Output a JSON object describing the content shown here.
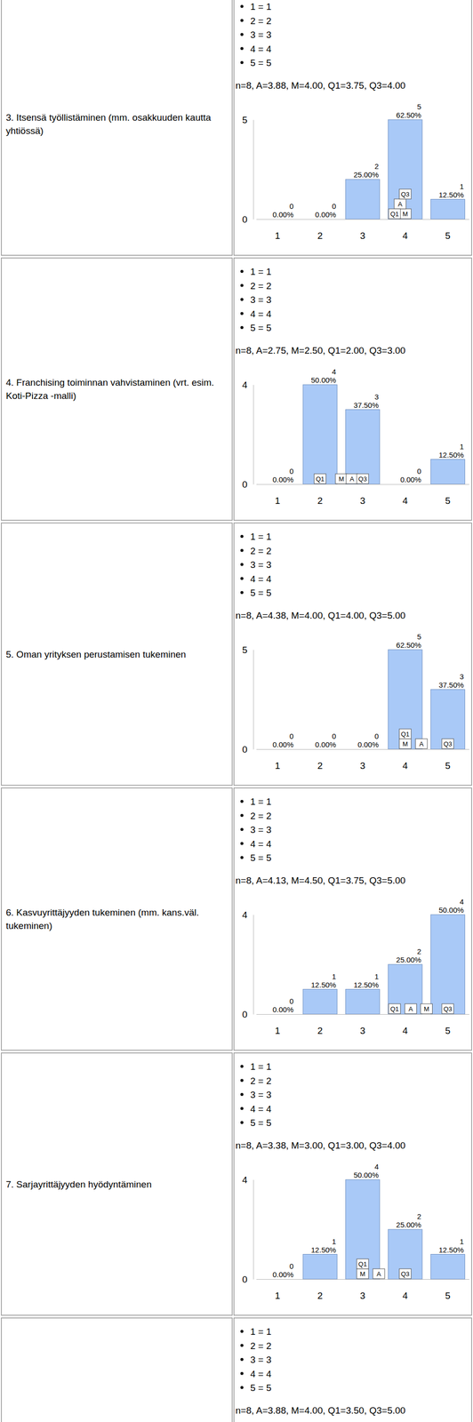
{
  "chart_data": [
    {
      "type": "bar",
      "title": "3. Itsensä työllistäminen (mm. osakkuuden kautta yhtiössä)",
      "scale_labels": [
        "1 = 1",
        "2 = 2",
        "3 = 3",
        "4 = 4",
        "5 = 5"
      ],
      "subtitle": "n=8, A=3.88, M=4.00, Q1=3.75, Q3=4.00",
      "categories": [
        "1",
        "2",
        "3",
        "4",
        "5"
      ],
      "values": [
        0,
        0,
        2,
        5,
        1
      ],
      "percent_labels": [
        "0.00%",
        "0.00%",
        "25.00%",
        "62.50%",
        "12.50%"
      ],
      "markers": [
        {
          "label": "M",
          "value": 4.0
        },
        {
          "label": "A",
          "value": 3.88
        },
        {
          "label": "Q1",
          "value": 3.75
        },
        {
          "label": "Q3",
          "value": 4.0
        }
      ],
      "color": "#a9c9f7",
      "ylim": [
        0,
        5
      ],
      "yticks": [
        0,
        5
      ],
      "data_labels": true
    },
    {
      "type": "bar",
      "title": "4. Franchising toiminnan vahvistaminen (vrt. esim. Koti-Pizza -malli)",
      "scale_labels": [
        "1 = 1",
        "2 = 2",
        "3 = 3",
        "4 = 4",
        "5 = 5"
      ],
      "subtitle": "n=8, A=2.75, M=2.50, Q1=2.00, Q3=3.00",
      "categories": [
        "1",
        "2",
        "3",
        "4",
        "5"
      ],
      "values": [
        0,
        4,
        3,
        0,
        1
      ],
      "percent_labels": [
        "0.00%",
        "50.00%",
        "37.50%",
        "0.00%",
        "12.50%"
      ],
      "markers": [
        {
          "label": "M",
          "value": 2.5
        },
        {
          "label": "A",
          "value": 2.75
        },
        {
          "label": "Q1",
          "value": 2.0
        },
        {
          "label": "Q3",
          "value": 3.0
        }
      ],
      "color": "#a9c9f7",
      "ylim": [
        0,
        4
      ],
      "yticks": [
        0,
        4
      ],
      "data_labels": true
    },
    {
      "type": "bar",
      "title": "5. Oman yrityksen perustamisen tukeminen",
      "scale_labels": [
        "1 = 1",
        "2 = 2",
        "3 = 3",
        "4 = 4",
        "5 = 5"
      ],
      "subtitle": "n=8, A=4.38, M=4.00, Q1=4.00, Q3=5.00",
      "categories": [
        "1",
        "2",
        "3",
        "4",
        "5"
      ],
      "values": [
        0,
        0,
        0,
        5,
        3
      ],
      "percent_labels": [
        "0.00%",
        "0.00%",
        "0.00%",
        "62.50%",
        "37.50%"
      ],
      "markers": [
        {
          "label": "M",
          "value": 4.0
        },
        {
          "label": "A",
          "value": 4.38
        },
        {
          "label": "Q1",
          "value": 4.0
        },
        {
          "label": "Q3",
          "value": 5.0
        }
      ],
      "color": "#a9c9f7",
      "ylim": [
        0,
        5
      ],
      "yticks": [
        0,
        5
      ],
      "data_labels": true
    },
    {
      "type": "bar",
      "title": "6. Kasvuyrittäjyyden tukeminen (mm. kans.väl. tukeminen)",
      "scale_labels": [
        "1 = 1",
        "2 = 2",
        "3 = 3",
        "4 = 4",
        "5 = 5"
      ],
      "subtitle": "n=8, A=4.13, M=4.50, Q1=3.75, Q3=5.00",
      "categories": [
        "1",
        "2",
        "3",
        "4",
        "5"
      ],
      "values": [
        0,
        1,
        1,
        2,
        4
      ],
      "percent_labels": [
        "0.00%",
        "12.50%",
        "12.50%",
        "25.00%",
        "50.00%"
      ],
      "markers": [
        {
          "label": "M",
          "value": 4.5
        },
        {
          "label": "A",
          "value": 4.13
        },
        {
          "label": "Q1",
          "value": 3.75
        },
        {
          "label": "Q3",
          "value": 5.0
        }
      ],
      "color": "#a9c9f7",
      "ylim": [
        0,
        4
      ],
      "yticks": [
        0,
        4
      ],
      "data_labels": true
    },
    {
      "type": "bar",
      "title": "7. Sarjayrittäjyyden hyödyntäminen",
      "scale_labels": [
        "1 = 1",
        "2 = 2",
        "3 = 3",
        "4 = 4",
        "5 = 5"
      ],
      "subtitle": "n=8, A=3.38, M=3.00, Q1=3.00, Q3=4.00",
      "categories": [
        "1",
        "2",
        "3",
        "4",
        "5"
      ],
      "values": [
        0,
        1,
        4,
        2,
        1
      ],
      "percent_labels": [
        "0.00%",
        "12.50%",
        "50.00%",
        "25.00%",
        "12.50%"
      ],
      "markers": [
        {
          "label": "M",
          "value": 3.0
        },
        {
          "label": "A",
          "value": 3.38
        },
        {
          "label": "Q1",
          "value": 3.0
        },
        {
          "label": "Q3",
          "value": 4.0
        }
      ],
      "color": "#a9c9f7",
      "ylim": [
        0,
        4
      ],
      "yticks": [
        0,
        4
      ],
      "data_labels": true
    }
  ],
  "partial_row": {
    "scale_labels": [
      "1 = 1",
      "2 = 2",
      "3 = 3",
      "4 = 4",
      "5 = 5"
    ],
    "subtitle": "n=8, A=3.88, M=4.00, Q1=3.50, Q3=5.00"
  }
}
